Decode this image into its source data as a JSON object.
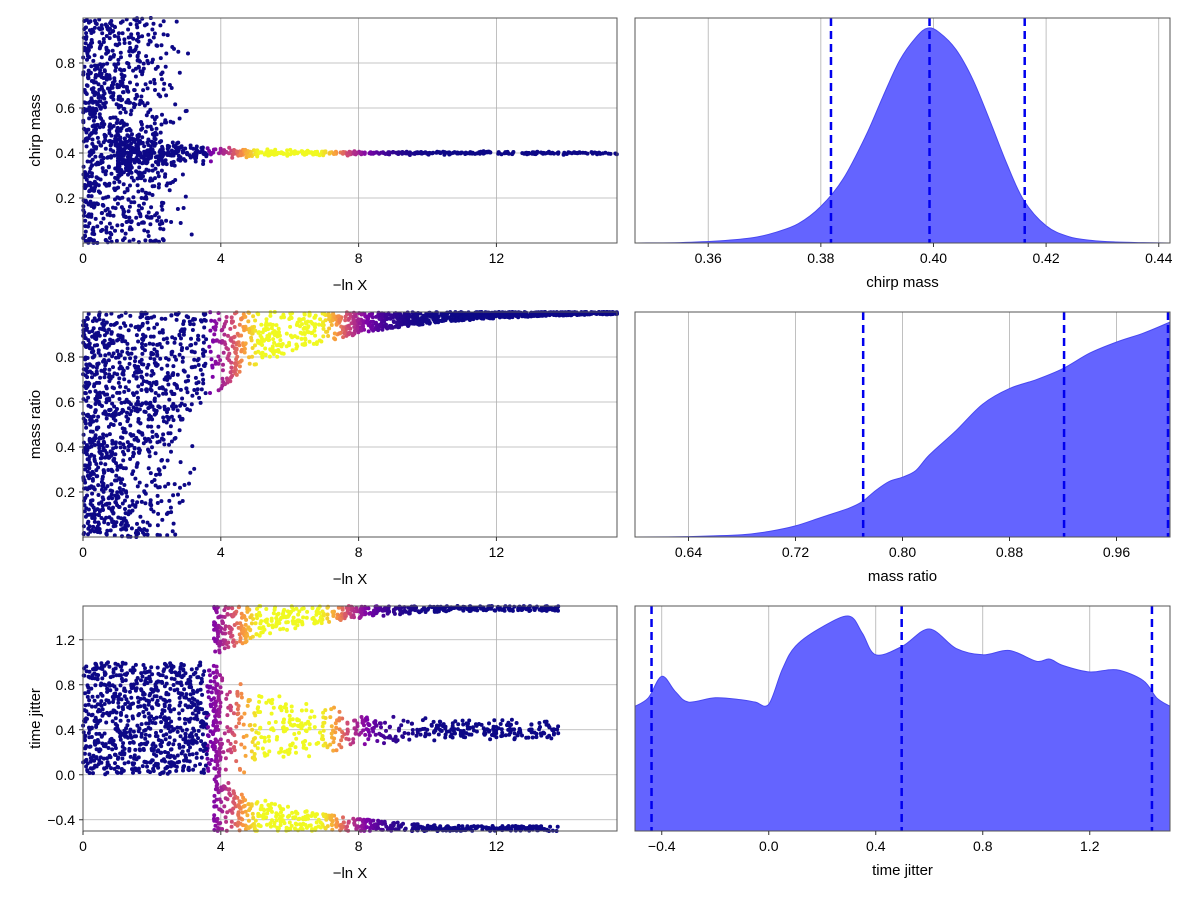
{
  "chart_data": [
    {
      "type": "scatter",
      "panel": "trace-chirp-mass",
      "xlabel": "−ln X",
      "ylabel": "chirp mass",
      "xlim": [
        0,
        15.5
      ],
      "ylim": [
        0.0,
        1.0
      ],
      "xticks": [
        0,
        4,
        8,
        12
      ],
      "yticks": [
        0.2,
        0.4,
        0.6,
        0.8
      ],
      "grid": true,
      "colormap": "plasma",
      "converged_value": 0.4,
      "description_values": {
        "posterior_peak_lnx": 6.0
      }
    },
    {
      "type": "area",
      "panel": "kde-chirp-mass",
      "xlabel": "chirp mass",
      "xlim": [
        0.347,
        0.442
      ],
      "xticks": [
        0.36,
        0.38,
        0.4,
        0.42,
        0.44
      ],
      "grid": true,
      "fill_color": "#6464ff",
      "x": [
        0.347,
        0.355,
        0.362,
        0.368,
        0.372,
        0.376,
        0.38,
        0.384,
        0.388,
        0.391,
        0.394,
        0.397,
        0.399,
        0.401,
        0.404,
        0.407,
        0.41,
        0.413,
        0.416,
        0.42,
        0.424,
        0.428,
        0.432,
        0.437,
        0.442
      ],
      "y": [
        0.0,
        0.002,
        0.01,
        0.025,
        0.05,
        0.09,
        0.17,
        0.3,
        0.5,
        0.68,
        0.85,
        0.96,
        1.0,
        0.98,
        0.9,
        0.76,
        0.57,
        0.37,
        0.2,
        0.08,
        0.03,
        0.012,
        0.005,
        0.002,
        0.0
      ],
      "quantile_lines": [
        0.3818,
        0.3993,
        0.4162
      ]
    },
    {
      "type": "scatter",
      "panel": "trace-mass-ratio",
      "xlabel": "−ln X",
      "ylabel": "mass ratio",
      "xlim": [
        0,
        15.5
      ],
      "ylim": [
        0.0,
        1.0
      ],
      "xticks": [
        0,
        4,
        8,
        12
      ],
      "yticks": [
        0.2,
        0.4,
        0.6,
        0.8
      ],
      "grid": true,
      "colormap": "plasma"
    },
    {
      "type": "area",
      "panel": "kde-mass-ratio",
      "xlabel": "mass ratio",
      "xlim": [
        0.6,
        1.0
      ],
      "xticks": [
        0.64,
        0.72,
        0.8,
        0.88,
        0.96
      ],
      "grid": true,
      "fill_color": "#6464ff",
      "x": [
        0.6,
        0.64,
        0.68,
        0.7,
        0.72,
        0.74,
        0.76,
        0.77,
        0.78,
        0.79,
        0.8,
        0.81,
        0.82,
        0.84,
        0.86,
        0.88,
        0.9,
        0.92,
        0.94,
        0.96,
        0.98,
        1.0
      ],
      "y": [
        0.0,
        0.002,
        0.01,
        0.025,
        0.05,
        0.09,
        0.13,
        0.16,
        0.21,
        0.25,
        0.27,
        0.3,
        0.37,
        0.48,
        0.6,
        0.67,
        0.71,
        0.76,
        0.83,
        0.88,
        0.92,
        0.97
      ],
      "quantile_lines": [
        0.7706,
        0.9208,
        0.9985
      ]
    },
    {
      "type": "scatter",
      "panel": "trace-time-jitter",
      "xlabel": "−ln X",
      "ylabel": "time jitter",
      "xlim": [
        0,
        15.5
      ],
      "ylim": [
        -0.5,
        1.5
      ],
      "xticks": [
        0,
        4,
        8,
        12
      ],
      "yticks": [
        -0.4,
        0.0,
        0.4,
        0.8,
        1.2
      ],
      "grid": true,
      "colormap": "plasma"
    },
    {
      "type": "area",
      "panel": "kde-time-jitter",
      "xlabel": "time jitter",
      "xlim": [
        -0.5,
        1.5
      ],
      "xticks": [
        -0.4,
        0.0,
        0.4,
        0.8,
        1.2
      ],
      "grid": true,
      "fill_color": "#6464ff",
      "x": [
        -0.5,
        -0.45,
        -0.4,
        -0.35,
        -0.3,
        -0.2,
        -0.1,
        -0.05,
        0.0,
        0.05,
        0.1,
        0.2,
        0.3,
        0.35,
        0.4,
        0.5,
        0.6,
        0.7,
        0.8,
        0.9,
        1.0,
        1.05,
        1.1,
        1.2,
        1.3,
        1.4,
        1.45,
        1.5
      ],
      "y": [
        0.58,
        0.62,
        0.72,
        0.65,
        0.6,
        0.62,
        0.61,
        0.6,
        0.59,
        0.75,
        0.86,
        0.95,
        1.0,
        0.92,
        0.82,
        0.86,
        0.94,
        0.85,
        0.82,
        0.84,
        0.79,
        0.8,
        0.77,
        0.74,
        0.75,
        0.7,
        0.62,
        0.58
      ],
      "quantile_lines": [
        -0.4382,
        0.4969,
        1.4325
      ]
    }
  ]
}
